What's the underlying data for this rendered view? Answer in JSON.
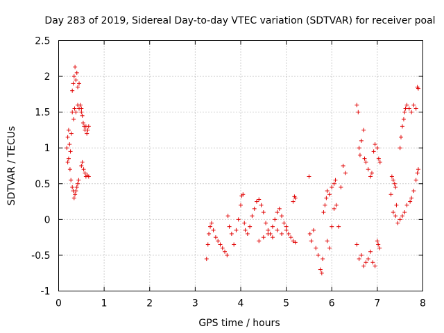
{
  "chart_data": {
    "type": "scatter",
    "title": "Day 283 of 2019, Sidereal Day-to-day VTEC variation (SDTVAR) for receiver poal",
    "xlabel": "GPS time / hours",
    "ylabel": "SDTVAR / TECUs",
    "xlim": [
      0,
      8
    ],
    "ylim": [
      -1,
      2.5
    ],
    "x_ticks": [
      "0",
      "1",
      "2",
      "3",
      "4",
      "5",
      "6",
      "7",
      "8"
    ],
    "y_ticks": [
      "-1",
      "-0.5",
      "0",
      "0.5",
      "1",
      "1.5",
      "2",
      "2.5"
    ],
    "grid": true,
    "marker": "+",
    "color": "#e00000",
    "series": [
      {
        "name": "SDTVAR",
        "points": [
          [
            0.18,
            1.0
          ],
          [
            0.2,
            1.15
          ],
          [
            0.22,
            1.25
          ],
          [
            0.24,
            1.05
          ],
          [
            0.26,
            0.95
          ],
          [
            0.28,
            1.2
          ],
          [
            0.3,
            1.5
          ],
          [
            0.2,
            0.8
          ],
          [
            0.22,
            0.85
          ],
          [
            0.25,
            0.7
          ],
          [
            0.27,
            0.55
          ],
          [
            0.3,
            0.45
          ],
          [
            0.32,
            0.4
          ],
          [
            0.34,
            0.3
          ],
          [
            0.36,
            0.35
          ],
          [
            0.38,
            0.4
          ],
          [
            0.4,
            0.45
          ],
          [
            0.42,
            0.5
          ],
          [
            0.44,
            0.55
          ],
          [
            0.3,
            1.8
          ],
          [
            0.32,
            1.9
          ],
          [
            0.34,
            2.0
          ],
          [
            0.36,
            2.13
          ],
          [
            0.38,
            1.95
          ],
          [
            0.4,
            2.05
          ],
          [
            0.42,
            1.85
          ],
          [
            0.45,
            1.9
          ],
          [
            0.33,
            1.4
          ],
          [
            0.35,
            1.55
          ],
          [
            0.38,
            1.5
          ],
          [
            0.42,
            1.6
          ],
          [
            0.45,
            1.55
          ],
          [
            0.48,
            1.6
          ],
          [
            0.5,
            1.55
          ],
          [
            0.5,
            1.5
          ],
          [
            0.52,
            1.45
          ],
          [
            0.54,
            1.35
          ],
          [
            0.56,
            1.3
          ],
          [
            0.58,
            1.25
          ],
          [
            0.6,
            1.3
          ],
          [
            0.62,
            1.2
          ],
          [
            0.64,
            1.25
          ],
          [
            0.66,
            1.3
          ],
          [
            0.5,
            0.75
          ],
          [
            0.52,
            0.8
          ],
          [
            0.55,
            0.7
          ],
          [
            0.58,
            0.65
          ],
          [
            0.6,
            0.6
          ],
          [
            0.63,
            0.62
          ],
          [
            0.66,
            0.6
          ],
          [
            3.25,
            -0.55
          ],
          [
            3.28,
            -0.35
          ],
          [
            3.3,
            -0.2
          ],
          [
            3.33,
            -0.1
          ],
          [
            3.36,
            -0.05
          ],
          [
            3.4,
            -0.15
          ],
          [
            3.45,
            -0.25
          ],
          [
            3.5,
            -0.3
          ],
          [
            3.55,
            -0.35
          ],
          [
            3.6,
            -0.4
          ],
          [
            3.65,
            -0.45
          ],
          [
            3.7,
            -0.5
          ],
          [
            3.72,
            0.05
          ],
          [
            3.75,
            -0.1
          ],
          [
            3.8,
            -0.2
          ],
          [
            3.85,
            -0.35
          ],
          [
            3.9,
            -0.15
          ],
          [
            3.95,
            0.0
          ],
          [
            4.0,
            0.2
          ],
          [
            4.02,
            0.33
          ],
          [
            4.05,
            0.35
          ],
          [
            4.08,
            -0.05
          ],
          [
            4.1,
            -0.15
          ],
          [
            4.15,
            -0.2
          ],
          [
            4.2,
            -0.1
          ],
          [
            4.25,
            0.05
          ],
          [
            4.3,
            0.15
          ],
          [
            4.35,
            0.25
          ],
          [
            4.4,
            0.28
          ],
          [
            4.45,
            0.2
          ],
          [
            4.5,
            0.1
          ],
          [
            4.55,
            -0.05
          ],
          [
            4.6,
            -0.15
          ],
          [
            4.65,
            -0.2
          ],
          [
            4.7,
            -0.1
          ],
          [
            4.75,
            0.0
          ],
          [
            4.8,
            0.1
          ],
          [
            4.85,
            0.15
          ],
          [
            4.9,
            0.05
          ],
          [
            4.95,
            -0.05
          ],
          [
            5.0,
            -0.15
          ],
          [
            5.05,
            -0.2
          ],
          [
            5.1,
            -0.25
          ],
          [
            5.15,
            -0.3
          ],
          [
            5.2,
            -0.32
          ],
          [
            5.15,
            0.25
          ],
          [
            5.18,
            0.32
          ],
          [
            5.2,
            0.3
          ],
          [
            4.4,
            -0.3
          ],
          [
            4.5,
            -0.25
          ],
          [
            4.6,
            -0.2
          ],
          [
            4.7,
            -0.25
          ],
          [
            4.8,
            -0.15
          ],
          [
            4.9,
            -0.2
          ],
          [
            5.0,
            -0.1
          ],
          [
            5.5,
            0.6
          ],
          [
            5.52,
            -0.2
          ],
          [
            5.55,
            -0.3
          ],
          [
            5.6,
            -0.15
          ],
          [
            5.65,
            -0.4
          ],
          [
            5.7,
            -0.5
          ],
          [
            5.75,
            -0.7
          ],
          [
            5.78,
            -0.75
          ],
          [
            5.8,
            -0.55
          ],
          [
            5.82,
            0.1
          ],
          [
            5.85,
            0.2
          ],
          [
            5.88,
            0.3
          ],
          [
            5.9,
            0.4
          ],
          [
            5.95,
            0.35
          ],
          [
            6.0,
            0.45
          ],
          [
            6.05,
            0.5
          ],
          [
            6.08,
            0.55
          ],
          [
            5.9,
            -0.3
          ],
          [
            5.95,
            -0.4
          ],
          [
            6.0,
            -0.1
          ],
          [
            6.05,
            0.15
          ],
          [
            6.1,
            0.2
          ],
          [
            6.15,
            -0.1
          ],
          [
            6.2,
            0.45
          ],
          [
            6.25,
            0.75
          ],
          [
            6.3,
            0.65
          ],
          [
            6.55,
            1.6
          ],
          [
            6.58,
            1.5
          ],
          [
            6.6,
            1.0
          ],
          [
            6.62,
            0.9
          ],
          [
            6.65,
            1.1
          ],
          [
            6.7,
            1.25
          ],
          [
            6.72,
            0.85
          ],
          [
            6.75,
            0.8
          ],
          [
            6.8,
            0.7
          ],
          [
            6.85,
            0.6
          ],
          [
            6.88,
            0.65
          ],
          [
            6.92,
            0.95
          ],
          [
            6.95,
            1.05
          ],
          [
            7.0,
            1.0
          ],
          [
            7.03,
            0.85
          ],
          [
            7.06,
            0.8
          ],
          [
            6.55,
            -0.35
          ],
          [
            6.6,
            -0.55
          ],
          [
            6.65,
            -0.5
          ],
          [
            6.7,
            -0.65
          ],
          [
            6.75,
            -0.6
          ],
          [
            6.8,
            -0.55
          ],
          [
            6.85,
            -0.45
          ],
          [
            6.9,
            -0.6
          ],
          [
            6.95,
            -0.65
          ],
          [
            7.0,
            -0.3
          ],
          [
            7.02,
            -0.35
          ],
          [
            7.05,
            -0.4
          ],
          [
            7.3,
            0.35
          ],
          [
            7.32,
            0.6
          ],
          [
            7.35,
            0.55
          ],
          [
            7.38,
            0.5
          ],
          [
            7.4,
            0.45
          ],
          [
            7.42,
            0.2
          ],
          [
            7.35,
            0.1
          ],
          [
            7.4,
            0.05
          ],
          [
            7.45,
            -0.05
          ],
          [
            7.5,
            0.0
          ],
          [
            7.55,
            0.05
          ],
          [
            7.6,
            0.1
          ],
          [
            7.65,
            0.2
          ],
          [
            7.5,
            1.0
          ],
          [
            7.52,
            1.15
          ],
          [
            7.55,
            1.3
          ],
          [
            7.58,
            1.4
          ],
          [
            7.6,
            1.5
          ],
          [
            7.62,
            1.55
          ],
          [
            7.65,
            1.6
          ],
          [
            7.7,
            1.55
          ],
          [
            7.75,
            1.5
          ],
          [
            7.8,
            1.6
          ],
          [
            7.85,
            1.55
          ],
          [
            7.88,
            1.85
          ],
          [
            7.9,
            1.83
          ],
          [
            7.72,
            0.25
          ],
          [
            7.75,
            0.3
          ],
          [
            7.8,
            0.4
          ],
          [
            7.85,
            0.55
          ],
          [
            7.88,
            0.65
          ],
          [
            7.9,
            0.7
          ]
        ]
      }
    ]
  }
}
